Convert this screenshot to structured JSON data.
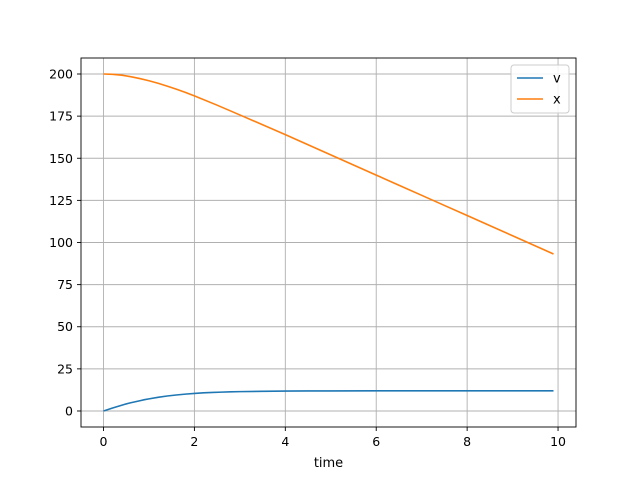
{
  "chart_data": {
    "type": "line",
    "title": "",
    "xlabel": "time",
    "ylabel": "",
    "xlim": [
      -0.495,
      10.395
    ],
    "ylim": [
      -9.5,
      209.5
    ],
    "xticks": [
      0,
      2,
      4,
      6,
      8,
      10
    ],
    "yticks": [
      0,
      25,
      50,
      75,
      100,
      125,
      150,
      175,
      200
    ],
    "grid": true,
    "legend_position": "top-right",
    "series": [
      {
        "name": "v",
        "color": "#1f77b4",
        "x": [
          0,
          0.1,
          0.2,
          0.3,
          0.4,
          0.5,
          0.6,
          0.7,
          0.8,
          0.9,
          1.0,
          1.2,
          1.4,
          1.6,
          1.8,
          2.0,
          2.2,
          2.4,
          2.6,
          2.8,
          3.0,
          3.5,
          4.0,
          4.5,
          5.0,
          6.0,
          7.0,
          8.0,
          9.0,
          9.9
        ],
        "y": [
          0,
          0.9,
          1.8,
          2.6,
          3.4,
          4.2,
          4.9,
          5.5,
          6.1,
          6.7,
          7.2,
          8.1,
          8.9,
          9.5,
          10.0,
          10.4,
          10.8,
          11.0,
          11.2,
          11.4,
          11.5,
          11.7,
          11.8,
          11.9,
          11.9,
          12.0,
          12.0,
          12.0,
          12.0,
          12.0
        ]
      },
      {
        "name": "x",
        "color": "#ff7f0e",
        "x": [
          0,
          0.2,
          0.4,
          0.6,
          0.8,
          1.0,
          1.2,
          1.4,
          1.6,
          1.8,
          2.0,
          2.5,
          3.0,
          3.5,
          4.0,
          4.5,
          5.0,
          5.5,
          6.0,
          6.5,
          7.0,
          7.5,
          8.0,
          8.5,
          9.0,
          9.5,
          9.9
        ],
        "y": [
          200,
          199.8,
          199.3,
          198.4,
          197.3,
          196.0,
          194.5,
          192.8,
          191.0,
          189.1,
          187.0,
          181.5,
          175.7,
          169.9,
          164.0,
          158.0,
          152.0,
          146.0,
          140.0,
          134.0,
          128.0,
          122.0,
          116.0,
          110.0,
          104.0,
          98.0,
          93.2
        ]
      }
    ]
  }
}
